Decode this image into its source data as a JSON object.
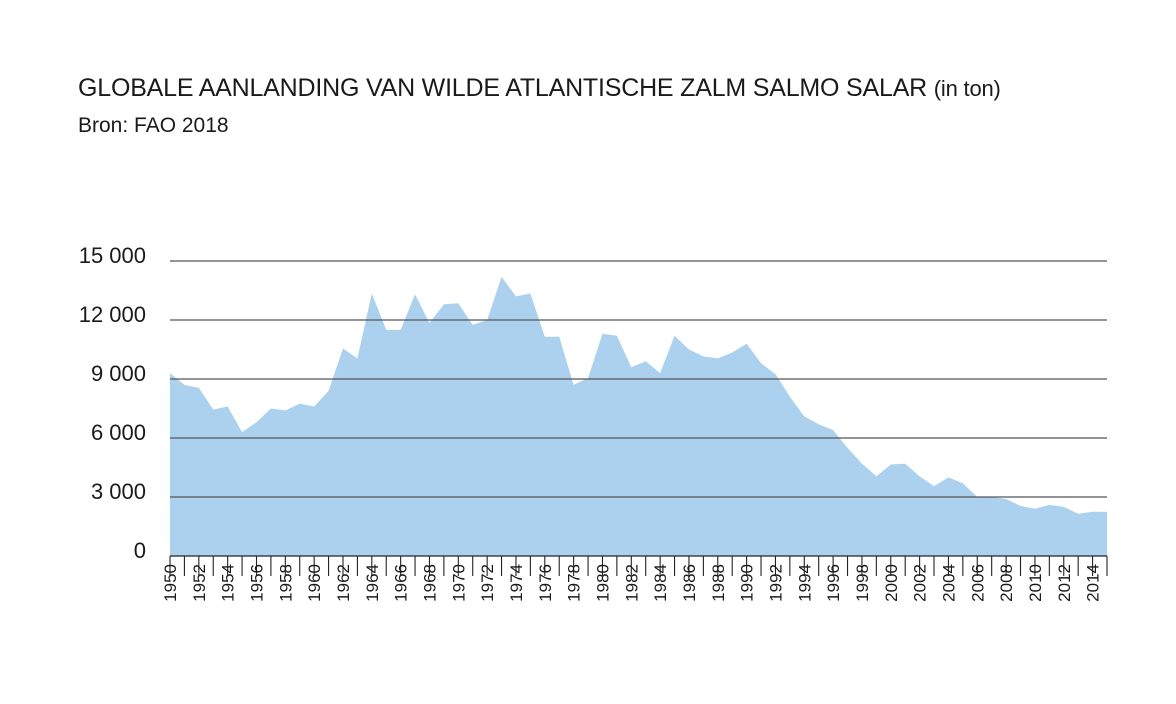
{
  "header": {
    "title": "GLOBALE AANLANDING VAN WILDE ATLANTISCHE ZALM SALMO SALAR",
    "title_unit": "(in ton)",
    "subtitle": "Bron: FAO 2018"
  },
  "chart_data": {
    "type": "area",
    "title": "GLOBALE AANLANDING VAN WILDE ATLANTISCHE ZALM SALMO SALAR (in ton)",
    "subtitle": "Bron: FAO 2018",
    "xlabel": "",
    "ylabel": "",
    "ylim": [
      0,
      15000
    ],
    "yticks": [
      0,
      3000,
      6000,
      9000,
      12000,
      15000
    ],
    "ytick_labels": [
      "0",
      "3 000",
      "6 000",
      "9 000",
      "12 000",
      "15 000"
    ],
    "x": [
      1950,
      1951,
      1952,
      1953,
      1954,
      1955,
      1956,
      1957,
      1958,
      1959,
      1960,
      1961,
      1962,
      1963,
      1964,
      1965,
      1966,
      1967,
      1968,
      1969,
      1970,
      1971,
      1972,
      1973,
      1974,
      1975,
      1976,
      1977,
      1978,
      1979,
      1980,
      1981,
      1982,
      1983,
      1984,
      1985,
      1986,
      1987,
      1988,
      1989,
      1990,
      1991,
      1992,
      1993,
      1994,
      1995,
      1996,
      1997,
      1998,
      1999,
      2000,
      2001,
      2002,
      2003,
      2004,
      2005,
      2006,
      2007,
      2008,
      2009,
      2010,
      2011,
      2012,
      2013,
      2014,
      2015
    ],
    "xtick_labels": [
      "1950",
      "1952",
      "1954",
      "1956",
      "1958",
      "1960",
      "1962",
      "1964",
      "1966",
      "1968",
      "1970",
      "1972",
      "1974",
      "1976",
      "1978",
      "1980",
      "1982",
      "1984",
      "1986",
      "1988",
      "1990",
      "1992",
      "1994",
      "1996",
      "1998",
      "2000",
      "2002",
      "2004",
      "2006",
      "2008",
      "2010",
      "2012",
      "2014"
    ],
    "series": [
      {
        "values": [
          9300,
          8700,
          8550,
          7450,
          7600,
          6300,
          6800,
          7500,
          7400,
          7750,
          7600,
          8400,
          10550,
          10050,
          13350,
          11500,
          11500,
          13300,
          11850,
          12800,
          12850,
          11750,
          12000,
          14200,
          13200,
          13350,
          11150,
          11150,
          8700,
          9050,
          11300,
          11200,
          9600,
          9900,
          9300,
          11200,
          10500,
          10150,
          10050,
          10350,
          10800,
          9800,
          9250,
          8100,
          7100,
          6700,
          6400,
          5500,
          4700,
          4050,
          4650,
          4700,
          4050,
          3550,
          4000,
          3700,
          3000,
          3000,
          2900,
          2550,
          2400,
          2600,
          2500,
          2150,
          2250,
          2250
        ]
      }
    ],
    "colors": {
      "area": "#acd1ef",
      "grid": "#555555",
      "text": "#1a1a1a"
    },
    "grid": true,
    "legend": "none"
  }
}
